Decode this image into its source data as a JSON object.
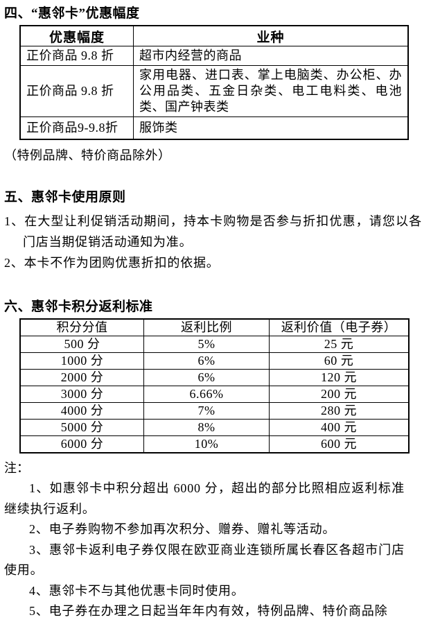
{
  "page": {
    "background": "#ffffff",
    "text_color": "#000000",
    "border_color": "#000000"
  },
  "section4": {
    "title": "四、“惠邻卡”优惠幅度",
    "table": {
      "headers": [
        "优惠幅度",
        "业种"
      ],
      "rows": [
        [
          "正价商品 9.8 折",
          "超市内经营的商品"
        ],
        [
          "正价商品 9.8 折",
          "家用电器、进口表、掌上电脑类、办公柜、办公用品类、五金日杂类、电工电料类、电池类、国产钟表类"
        ],
        [
          "正价商品9-9.8折",
          "服饰类"
        ]
      ]
    },
    "exception_note": "（特例品牌、特价商品除外）"
  },
  "section5": {
    "title": "五、惠邻卡使用原则",
    "items": [
      "1、在大型让利促销活动期间，持本卡购物是否参与折扣优惠，请您以各门店当期促销活动通知为准。",
      "2、本卡不作为团购优惠折扣的依据。"
    ]
  },
  "section6": {
    "title": "六、惠邻卡积分返利标准",
    "table": {
      "headers": [
        "积分分值",
        "返利比例",
        "返利价值（电子券）"
      ],
      "rows": [
        [
          "500 分",
          "5%",
          "25 元"
        ],
        [
          "1000 分",
          "6%",
          "60 元"
        ],
        [
          "2000 分",
          "6%",
          "120 元"
        ],
        [
          "3000 分",
          "6.66%",
          "200 元"
        ],
        [
          "4000 分",
          "7%",
          "280 元"
        ],
        [
          "5000 分",
          "8%",
          "400 元"
        ],
        [
          "6000 分",
          "10%",
          "600 元"
        ]
      ]
    }
  },
  "notes": {
    "label": "注：",
    "items": [
      "1、如惠邻卡中积分超出 6000 分，超出的部分比照相应返利标准继续执行返利。",
      "2、电子券购物不参加再次积分、赠券、赠礼等活动。",
      "3、惠邻卡返利电子券仅限在欧亚商业连锁所属长春区各超市门店使用。",
      "4、惠邻卡不与其他优惠卡同时使用。",
      "5、电子券在办理之日起当年年内有效，特例品牌、特价商品除"
    ]
  }
}
